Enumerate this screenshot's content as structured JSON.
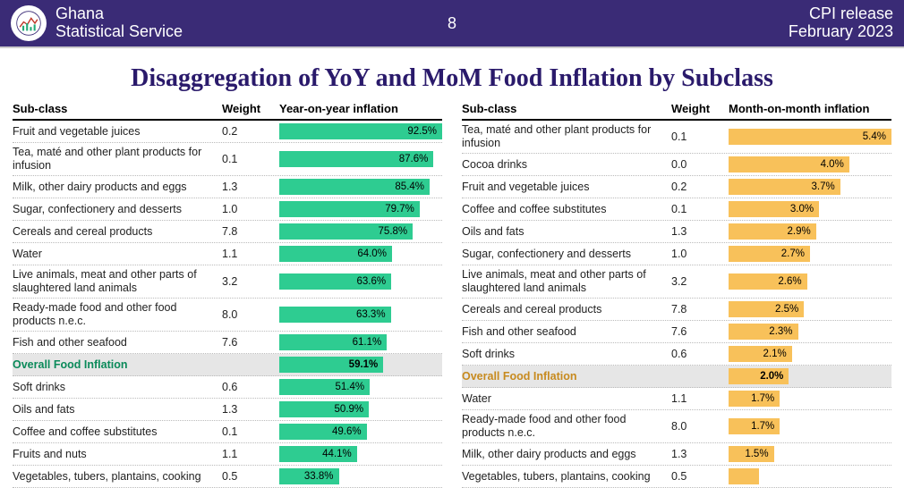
{
  "header": {
    "org_line1": "Ghana",
    "org_line2": "Statistical Service",
    "page_number": "8",
    "release_line1": "CPI release",
    "release_line2": "February  2023"
  },
  "title": "Disaggregation of YoY and MoM Food Inflation by Subclass",
  "columns": {
    "subclass": "Sub-class",
    "weight": "Weight",
    "yoy": "Year-on-year inflation",
    "mom": "Month-on-month inflation"
  },
  "styling": {
    "header_bg": "#3a2b76",
    "header_fg": "#ffffff",
    "title_color": "#2a1a6b",
    "title_font": "Georgia, serif",
    "title_fontsize": 28,
    "yoy_bar_color": "#2ecc91",
    "mom_bar_color": "#f8c15a",
    "overall_row_bg": "#e6e6e6",
    "overall_yoy_text": "#0b8a5a",
    "overall_mom_text": "#c78a1e",
    "row_border": "#bbbbbb",
    "header_rule": "#000000",
    "body_fontsize": 12.5,
    "label_fontsize": 11.5,
    "yoy_max": 92.5,
    "mom_max": 5.4
  },
  "yoy": {
    "rows": [
      {
        "name": "Fruit and vegetable juices",
        "weight": "0.2",
        "value": 92.5,
        "label": "92.5%"
      },
      {
        "name": "Tea, maté and other plant products for infusion",
        "weight": "0.1",
        "value": 87.6,
        "label": "87.6%"
      },
      {
        "name": "Milk, other dairy products and eggs",
        "weight": "1.3",
        "value": 85.4,
        "label": "85.4%"
      },
      {
        "name": "Sugar, confectionery and desserts",
        "weight": "1.0",
        "value": 79.7,
        "label": "79.7%"
      },
      {
        "name": "Cereals and cereal products",
        "weight": "7.8",
        "value": 75.8,
        "label": "75.8%"
      },
      {
        "name": "Water",
        "weight": "1.1",
        "value": 64.0,
        "label": "64.0%"
      },
      {
        "name": "Live animals, meat and other parts of slaughtered land animals",
        "weight": "3.2",
        "value": 63.6,
        "label": "63.6%"
      },
      {
        "name": "Ready-made food and other food products n.e.c.",
        "weight": "8.0",
        "value": 63.3,
        "label": "63.3%"
      },
      {
        "name": "Fish and other seafood",
        "weight": "7.6",
        "value": 61.1,
        "label": "61.1%"
      },
      {
        "name": "Overall Food Inflation",
        "weight": "",
        "value": 59.1,
        "label": "59.1%",
        "overall": true
      },
      {
        "name": "Soft drinks",
        "weight": "0.6",
        "value": 51.4,
        "label": "51.4%"
      },
      {
        "name": "Oils and fats",
        "weight": "1.3",
        "value": 50.9,
        "label": "50.9%"
      },
      {
        "name": "Coffee and coffee substitutes",
        "weight": "0.1",
        "value": 49.6,
        "label": "49.6%"
      },
      {
        "name": "Fruits and nuts",
        "weight": "1.1",
        "value": 44.1,
        "label": "44.1%"
      },
      {
        "name": "Vegetables, tubers, plantains, cooking",
        "weight": "0.5",
        "value": 33.8,
        "label": "33.8%"
      }
    ]
  },
  "mom": {
    "rows": [
      {
        "name": "Tea, maté and other plant products for infusion",
        "weight": "0.1",
        "value": 5.4,
        "label": "5.4%"
      },
      {
        "name": "Cocoa drinks",
        "weight": "0.0",
        "value": 4.0,
        "label": "4.0%"
      },
      {
        "name": "Fruit and vegetable juices",
        "weight": "0.2",
        "value": 3.7,
        "label": "3.7%"
      },
      {
        "name": "Coffee and coffee substitutes",
        "weight": "0.1",
        "value": 3.0,
        "label": "3.0%"
      },
      {
        "name": "Oils and fats",
        "weight": "1.3",
        "value": 2.9,
        "label": "2.9%"
      },
      {
        "name": "Sugar, confectionery and desserts",
        "weight": "1.0",
        "value": 2.7,
        "label": "2.7%"
      },
      {
        "name": "Live animals, meat and other parts of slaughtered land animals",
        "weight": "3.2",
        "value": 2.6,
        "label": "2.6%"
      },
      {
        "name": "Cereals and cereal products",
        "weight": "7.8",
        "value": 2.5,
        "label": "2.5%"
      },
      {
        "name": "Fish and other seafood",
        "weight": "7.6",
        "value": 2.3,
        "label": "2.3%"
      },
      {
        "name": "Soft drinks",
        "weight": "0.6",
        "value": 2.1,
        "label": "2.1%"
      },
      {
        "name": "Overall Food Inflation",
        "weight": "",
        "value": 2.0,
        "label": "2.0%",
        "overall": true
      },
      {
        "name": "Water",
        "weight": "1.1",
        "value": 1.7,
        "label": "1.7%"
      },
      {
        "name": "Ready-made food and other food products n.e.c.",
        "weight": "8.0",
        "value": 1.7,
        "label": "1.7%"
      },
      {
        "name": "Milk, other dairy products and eggs",
        "weight": "1.3",
        "value": 1.5,
        "label": "1.5%"
      },
      {
        "name": "Vegetables, tubers, plantains, cooking",
        "weight": "0.5",
        "value": 1.0,
        "label": ""
      }
    ]
  }
}
